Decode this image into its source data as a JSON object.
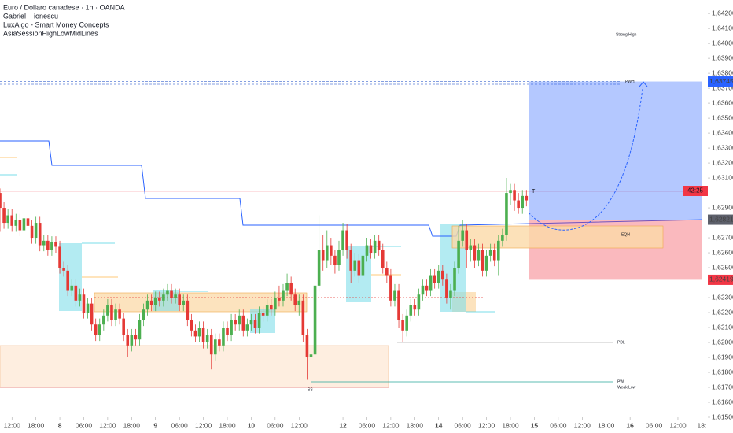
{
  "chart_data": {
    "type": "candlestick",
    "legend": [
      "Euro / Dollaro canadese · 1h · OANDA",
      "Gabriel__ionescu",
      "LuxAlgo - Smart Money Concepts",
      "AsiaSessionHighLowMidLines"
    ],
    "up_color": "#4caf50",
    "down_color": "#e53935",
    "xlim": [
      0,
      177.5
    ],
    "xticks": [
      {
        "value": 3,
        "label": "12:00"
      },
      {
        "value": 9,
        "label": "18:00"
      },
      {
        "value": 15,
        "label": "8"
      },
      {
        "value": 21,
        "label": "06:00"
      },
      {
        "value": 27,
        "label": "12:00"
      },
      {
        "value": 33,
        "label": "18:00"
      },
      {
        "value": 39,
        "label": "9"
      },
      {
        "value": 45,
        "label": "06:00"
      },
      {
        "value": 51,
        "label": "12:00"
      },
      {
        "value": 57,
        "label": "18:00"
      },
      {
        "value": 63,
        "label": "10"
      },
      {
        "value": 69,
        "label": "06:00"
      },
      {
        "value": 75,
        "label": "12:00"
      },
      {
        "value": 86,
        "label": "12"
      },
      {
        "value": 92,
        "label": "06:00"
      },
      {
        "value": 98,
        "label": "12:00"
      },
      {
        "value": 104,
        "label": "18:00"
      },
      {
        "value": 110,
        "label": "14"
      },
      {
        "value": 116,
        "label": "06:00"
      },
      {
        "value": 122,
        "label": "12:00"
      },
      {
        "value": 128,
        "label": "18:00"
      },
      {
        "value": 134,
        "label": "15"
      },
      {
        "value": 140,
        "label": "06:00"
      },
      {
        "value": 146,
        "label": "12:00"
      },
      {
        "value": 152,
        "label": "18:00"
      },
      {
        "value": 158,
        "label": "16"
      },
      {
        "value": 164,
        "label": "06:00"
      },
      {
        "value": 170,
        "label": "12:00"
      },
      {
        "value": 176,
        "label": "18:"
      }
    ],
    "ylim": [
      1.615,
      1.6429
    ],
    "yticks": [
      {
        "value": 1.642,
        "label": "1,64200"
      },
      {
        "value": 1.641,
        "label": "1,64100"
      },
      {
        "value": 1.64,
        "label": "1,64000"
      },
      {
        "value": 1.639,
        "label": "1,63900"
      },
      {
        "value": 1.638,
        "label": "1,63800"
      },
      {
        "value": 1.637,
        "label": "1,63700"
      },
      {
        "value": 1.636,
        "label": "1,63600"
      },
      {
        "value": 1.635,
        "label": "1,63500"
      },
      {
        "value": 1.634,
        "label": "1,63400"
      },
      {
        "value": 1.633,
        "label": "1,63300"
      },
      {
        "value": 1.632,
        "label": "1,63200"
      },
      {
        "value": 1.631,
        "label": "1,63100"
      },
      {
        "value": 1.629,
        "label": "1,62900"
      },
      {
        "value": 1.627,
        "label": "1,62700"
      },
      {
        "value": 1.626,
        "label": "1,62600"
      },
      {
        "value": 1.625,
        "label": "1,62500"
      },
      {
        "value": 1.623,
        "label": "1,62300"
      },
      {
        "value": 1.622,
        "label": "1,62200"
      },
      {
        "value": 1.621,
        "label": "1,62100"
      },
      {
        "value": 1.62,
        "label": "1,62000"
      },
      {
        "value": 1.619,
        "label": "1,61900"
      },
      {
        "value": 1.618,
        "label": "1,61800"
      },
      {
        "value": 1.617,
        "label": "1,61700"
      },
      {
        "value": 1.616,
        "label": "1,61600"
      },
      {
        "value": 1.615,
        "label": "1,61500"
      }
    ],
    "candles": [
      [
        1.63,
        1.6303,
        1.6274,
        1.629
      ],
      [
        1.629,
        1.6294,
        1.6276,
        1.628
      ],
      [
        1.628,
        1.6289,
        1.6276,
        1.6285
      ],
      [
        1.6285,
        1.6289,
        1.6274,
        1.6278
      ],
      [
        1.6278,
        1.6286,
        1.6274,
        1.6282
      ],
      [
        1.6282,
        1.6286,
        1.6271,
        1.6275
      ],
      [
        1.6275,
        1.6287,
        1.6271,
        1.6283
      ],
      [
        1.6283,
        1.6287,
        1.6274,
        1.6278
      ],
      [
        1.6278,
        1.6282,
        1.6266,
        1.627
      ],
      [
        1.627,
        1.6284,
        1.6266,
        1.628
      ],
      [
        1.628,
        1.6284,
        1.6261,
        1.6265
      ],
      [
        1.6265,
        1.6272,
        1.6261,
        1.6268
      ],
      [
        1.6268,
        1.6272,
        1.6258,
        1.6262
      ],
      [
        1.6262,
        1.6271,
        1.6258,
        1.6267
      ],
      [
        1.6267,
        1.6271,
        1.626,
        1.6264
      ],
      [
        1.6264,
        1.6268,
        1.6246,
        1.625
      ],
      [
        1.625,
        1.6254,
        1.6244,
        1.6248
      ],
      [
        1.6248,
        1.6252,
        1.6231,
        1.6235
      ],
      [
        1.6235,
        1.6242,
        1.6231,
        1.6238
      ],
      [
        1.6238,
        1.6242,
        1.6224,
        1.6228
      ],
      [
        1.6228,
        1.6236,
        1.6224,
        1.6232
      ],
      [
        1.6232,
        1.6236,
        1.6216,
        1.622
      ],
      [
        1.622,
        1.623,
        1.6216,
        1.6226
      ],
      [
        1.6226,
        1.623,
        1.6208,
        1.6212
      ],
      [
        1.6212,
        1.6216,
        1.6201,
        1.6205
      ],
      [
        1.6205,
        1.6216,
        1.6201,
        1.6212
      ],
      [
        1.6212,
        1.6222,
        1.6208,
        1.6218
      ],
      [
        1.6218,
        1.6229,
        1.6214,
        1.6225
      ],
      [
        1.6225,
        1.6229,
        1.6211,
        1.6215
      ],
      [
        1.6215,
        1.6226,
        1.6211,
        1.6222
      ],
      [
        1.6222,
        1.6226,
        1.6212,
        1.6216
      ],
      [
        1.6216,
        1.622,
        1.6201,
        1.6205
      ],
      [
        1.6205,
        1.6209,
        1.619,
        1.6198
      ],
      [
        1.6198,
        1.6209,
        1.6194,
        1.6205
      ],
      [
        1.6205,
        1.6209,
        1.6198,
        1.6202
      ],
      [
        1.6202,
        1.6219,
        1.6198,
        1.6215
      ],
      [
        1.6215,
        1.6226,
        1.6211,
        1.6222
      ],
      [
        1.6222,
        1.6232,
        1.6218,
        1.6228
      ],
      [
        1.6228,
        1.6232,
        1.6221,
        1.6225
      ],
      [
        1.6225,
        1.6234,
        1.6221,
        1.623
      ],
      [
        1.623,
        1.6234,
        1.6224,
        1.6228
      ],
      [
        1.6228,
        1.6236,
        1.6224,
        1.6232
      ],
      [
        1.6232,
        1.6239,
        1.6228,
        1.6235
      ],
      [
        1.6235,
        1.6239,
        1.6226,
        1.623
      ],
      [
        1.623,
        1.6236,
        1.6226,
        1.6232
      ],
      [
        1.6232,
        1.6236,
        1.6221,
        1.6225
      ],
      [
        1.6225,
        1.6232,
        1.6221,
        1.6228
      ],
      [
        1.6228,
        1.6232,
        1.6211,
        1.6215
      ],
      [
        1.6215,
        1.6219,
        1.6204,
        1.6208
      ],
      [
        1.6208,
        1.6212,
        1.62,
        1.6204
      ],
      [
        1.6204,
        1.6214,
        1.62,
        1.621
      ],
      [
        1.621,
        1.6214,
        1.6196,
        1.62
      ],
      [
        1.62,
        1.6209,
        1.6196,
        1.6205
      ],
      [
        1.6205,
        1.6209,
        1.6182,
        1.6192
      ],
      [
        1.6192,
        1.6206,
        1.6188,
        1.6202
      ],
      [
        1.6202,
        1.6206,
        1.6194,
        1.6198
      ],
      [
        1.6198,
        1.6214,
        1.6194,
        1.621
      ],
      [
        1.621,
        1.6214,
        1.6201,
        1.6205
      ],
      [
        1.6205,
        1.6219,
        1.6201,
        1.6215
      ],
      [
        1.6215,
        1.6219,
        1.6208,
        1.6212
      ],
      [
        1.6212,
        1.6222,
        1.6208,
        1.6218
      ],
      [
        1.6218,
        1.6222,
        1.6204,
        1.6208
      ],
      [
        1.6208,
        1.6216,
        1.6204,
        1.6212
      ],
      [
        1.6212,
        1.6219,
        1.6208,
        1.6215
      ],
      [
        1.6215,
        1.6219,
        1.6206,
        1.621
      ],
      [
        1.621,
        1.6224,
        1.6206,
        1.622
      ],
      [
        1.622,
        1.6224,
        1.6214,
        1.6218
      ],
      [
        1.6218,
        1.6229,
        1.6214,
        1.6225
      ],
      [
        1.6225,
        1.6229,
        1.6218,
        1.6222
      ],
      [
        1.6222,
        1.6234,
        1.6218,
        1.623
      ],
      [
        1.623,
        1.6238,
        1.6224,
        1.6228
      ],
      [
        1.6228,
        1.6239,
        1.6224,
        1.6235
      ],
      [
        1.6235,
        1.6246,
        1.6231,
        1.624
      ],
      [
        1.624,
        1.6244,
        1.6228,
        1.6232
      ],
      [
        1.6232,
        1.6236,
        1.6221,
        1.6225
      ],
      [
        1.6225,
        1.6232,
        1.6218,
        1.6228
      ],
      [
        1.6228,
        1.6232,
        1.62,
        1.6205
      ],
      [
        1.6205,
        1.6209,
        1.6175,
        1.619
      ],
      [
        1.619,
        1.6198,
        1.6184,
        1.6192
      ],
      [
        1.6192,
        1.6245,
        1.6188,
        1.6238
      ],
      [
        1.6238,
        1.6285,
        1.6234,
        1.6262
      ],
      [
        1.6262,
        1.6272,
        1.6248,
        1.6255
      ],
      [
        1.6255,
        1.6275,
        1.625,
        1.6265
      ],
      [
        1.6265,
        1.627,
        1.6252,
        1.6258
      ],
      [
        1.6258,
        1.6262,
        1.6246,
        1.6252
      ],
      [
        1.6252,
        1.6268,
        1.6248,
        1.6262
      ],
      [
        1.6262,
        1.628,
        1.6258,
        1.6275
      ],
      [
        1.6275,
        1.6279,
        1.6256,
        1.6262
      ],
      [
        1.6262,
        1.6266,
        1.624,
        1.6248
      ],
      [
        1.6248,
        1.626,
        1.6244,
        1.6255
      ],
      [
        1.6255,
        1.6259,
        1.624,
        1.6245
      ],
      [
        1.6245,
        1.6262,
        1.6241,
        1.6258
      ],
      [
        1.6258,
        1.627,
        1.6254,
        1.6265
      ],
      [
        1.6265,
        1.6269,
        1.6256,
        1.626
      ],
      [
        1.626,
        1.6272,
        1.6256,
        1.6268
      ],
      [
        1.6268,
        1.6272,
        1.6258,
        1.6262
      ],
      [
        1.6262,
        1.6266,
        1.6246,
        1.625
      ],
      [
        1.625,
        1.6254,
        1.624,
        1.6245
      ],
      [
        1.6245,
        1.6249,
        1.6224,
        1.6228
      ],
      [
        1.6228,
        1.6239,
        1.6224,
        1.6235
      ],
      [
        1.6235,
        1.6239,
        1.621,
        1.6215
      ],
      [
        1.6215,
        1.6219,
        1.62,
        1.6208
      ],
      [
        1.6208,
        1.6222,
        1.6204,
        1.6218
      ],
      [
        1.6218,
        1.6229,
        1.6214,
        1.6225
      ],
      [
        1.6225,
        1.6229,
        1.6218,
        1.6222
      ],
      [
        1.6222,
        1.6236,
        1.6218,
        1.6232
      ],
      [
        1.6232,
        1.6242,
        1.6228,
        1.6238
      ],
      [
        1.6238,
        1.6242,
        1.6231,
        1.6235
      ],
      [
        1.6235,
        1.6249,
        1.6231,
        1.6245
      ],
      [
        1.6245,
        1.6249,
        1.6236,
        1.624
      ],
      [
        1.624,
        1.6252,
        1.6236,
        1.6248
      ],
      [
        1.6248,
        1.6252,
        1.6238,
        1.6242
      ],
      [
        1.6242,
        1.6246,
        1.6226,
        1.623
      ],
      [
        1.623,
        1.6239,
        1.6222,
        1.6235
      ],
      [
        1.6235,
        1.6254,
        1.6231,
        1.625
      ],
      [
        1.625,
        1.6278,
        1.6246,
        1.6268
      ],
      [
        1.6268,
        1.6282,
        1.6264,
        1.6275
      ],
      [
        1.6275,
        1.6279,
        1.625,
        1.6262
      ],
      [
        1.6262,
        1.6269,
        1.6254,
        1.6265
      ],
      [
        1.6265,
        1.6269,
        1.625,
        1.6255
      ],
      [
        1.6255,
        1.6266,
        1.6251,
        1.6262
      ],
      [
        1.6262,
        1.6266,
        1.6244,
        1.6248
      ],
      [
        1.6248,
        1.6262,
        1.6244,
        1.6258
      ],
      [
        1.6258,
        1.6266,
        1.6254,
        1.6262
      ],
      [
        1.6262,
        1.6266,
        1.6251,
        1.6255
      ],
      [
        1.6255,
        1.6272,
        1.6245,
        1.6268
      ],
      [
        1.6268,
        1.6276,
        1.6264,
        1.6272
      ],
      [
        1.6272,
        1.631,
        1.6268,
        1.63
      ],
      [
        1.63,
        1.6306,
        1.6292,
        1.6302
      ],
      [
        1.6302,
        1.6306,
        1.6288,
        1.6295
      ],
      [
        1.6295,
        1.63,
        1.6286,
        1.629
      ],
      [
        1.629,
        1.6302,
        1.6286,
        1.6298
      ],
      [
        1.6298,
        1.6302,
        1.6291,
        1.6295
      ]
    ],
    "levels": [
      {
        "label": "Strong High",
        "value": 1.6403,
        "color": "#ef9a9a"
      },
      {
        "label": "PWH",
        "value": 1.63745,
        "color": "#5b7fd6"
      },
      {
        "label": "PDL",
        "value": 1.62,
        "color": "#b0b0b0"
      },
      {
        "label": "PWL",
        "value": 1.61737,
        "color": "#26a69a"
      }
    ],
    "annotations": {
      "weak_low": "Weak Low",
      "eqh": "EQH",
      "ss": "SS",
      "countdown": "42:25",
      "marker": "T"
    },
    "price_badges": [
      {
        "value": 1.63745,
        "label": "1,63745",
        "color": "#2962ff"
      },
      {
        "value": 1.62821,
        "label": "1,62821",
        "color": "#5d606b"
      },
      {
        "value": 1.62419,
        "label": "1,62419",
        "color": "#f23645"
      }
    ]
  }
}
